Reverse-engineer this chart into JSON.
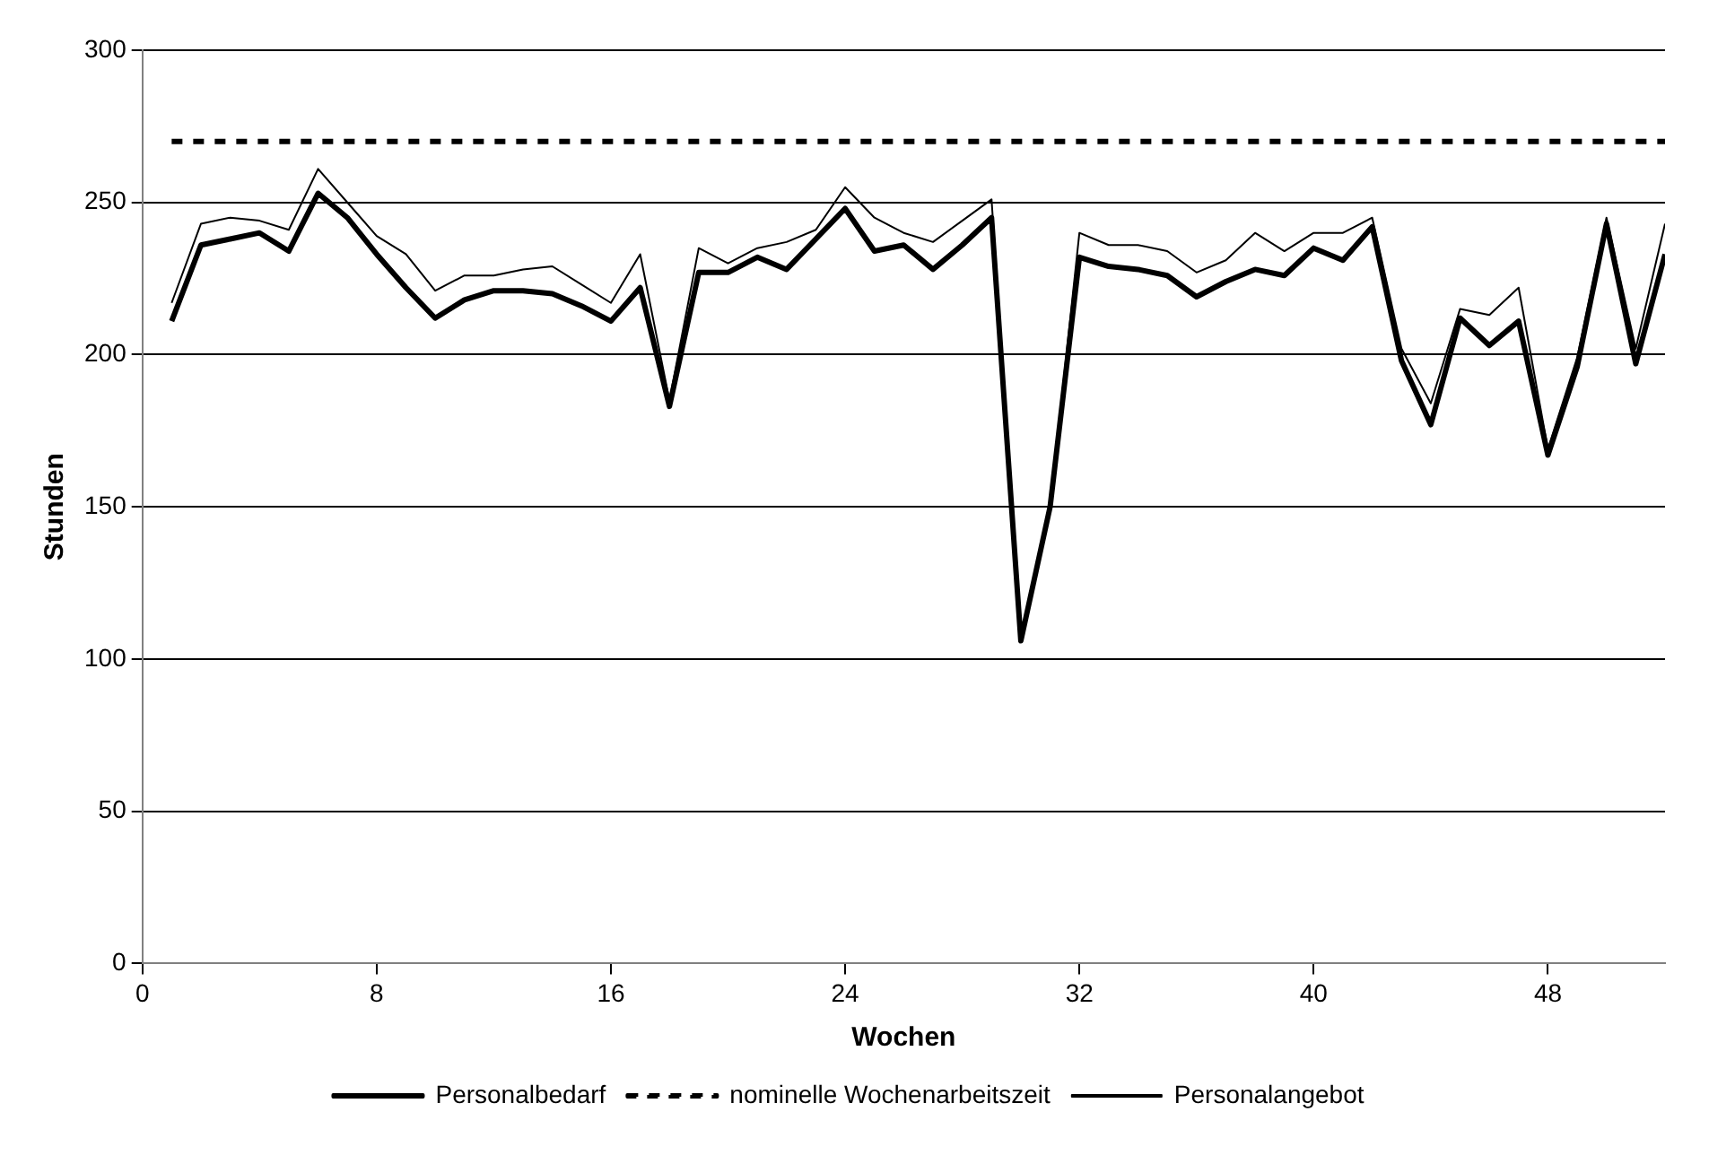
{
  "chart_data": {
    "type": "line",
    "xlabel": "Wochen",
    "ylabel": "Stunden",
    "x": [
      1,
      2,
      3,
      4,
      5,
      6,
      7,
      8,
      9,
      10,
      11,
      12,
      13,
      14,
      15,
      16,
      17,
      18,
      19,
      20,
      21,
      22,
      23,
      24,
      25,
      26,
      27,
      28,
      29,
      30,
      31,
      32,
      33,
      34,
      35,
      36,
      37,
      38,
      39,
      40,
      41,
      42,
      43,
      44,
      45,
      46,
      47,
      48,
      49,
      50,
      51,
      52
    ],
    "series": [
      {
        "name": "Personalbedarf",
        "color": "#000000",
        "line_style": "solid",
        "values": [
          211,
          236,
          238,
          240,
          234,
          253,
          245,
          233,
          222,
          212,
          218,
          221,
          221,
          220,
          216,
          211,
          222,
          183,
          227,
          227,
          232,
          228,
          238,
          248,
          234,
          236,
          228,
          236,
          245,
          106,
          150,
          232,
          229,
          228,
          226,
          219,
          224,
          228,
          226,
          235,
          231,
          242,
          198,
          177,
          212,
          203,
          211,
          167,
          196,
          243,
          197,
          233
        ]
      },
      {
        "name": "nominelle Wochenarbeitszeit",
        "color": "#000000",
        "line_style": "dashed",
        "x": [
          1,
          52
        ],
        "values": [
          270,
          270
        ]
      },
      {
        "name": "Personalangebot",
        "color": "#000000",
        "line_style": "solid",
        "values": [
          217,
          243,
          245,
          244,
          241,
          261,
          250,
          239,
          233,
          221,
          226,
          226,
          228,
          229,
          223,
          217,
          233,
          185,
          235,
          230,
          235,
          237,
          241,
          255,
          245,
          240,
          237,
          244,
          251,
          107,
          150,
          240,
          236,
          236,
          234,
          227,
          231,
          240,
          234,
          240,
          240,
          245,
          202,
          184,
          215,
          213,
          222,
          169,
          199,
          245,
          202,
          243
        ]
      }
    ],
    "xlim": [
      0,
      52
    ],
    "xticks": [
      0,
      8,
      16,
      24,
      32,
      40,
      48
    ],
    "ylim": [
      0,
      300
    ],
    "yticks": [
      0,
      50,
      100,
      150,
      200,
      250,
      300
    ],
    "grid": "y",
    "legend": "bottom",
    "marker": "none"
  }
}
